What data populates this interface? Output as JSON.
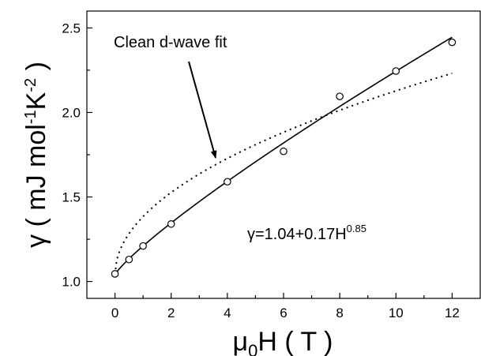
{
  "chart_data": {
    "type": "scatter",
    "title": "",
    "xlabel": {
      "main": "μ",
      "sub": "0",
      "rest": "H ( T )"
    },
    "ylabel": {
      "p1": "γ ( mJ mol",
      "sup1": "-1",
      "p2": "K",
      "sup2": "-2",
      "p3": " )"
    },
    "xlim": [
      -1,
      13
    ],
    "ylim": [
      0.9,
      2.6
    ],
    "xticks": [
      0,
      2,
      4,
      6,
      8,
      10,
      12
    ],
    "yticks": [
      1.0,
      1.5,
      2.0,
      2.5
    ],
    "ytick_labels": [
      "1.0",
      "1.5",
      "2.0",
      "2.5"
    ],
    "grid": false,
    "points": {
      "x": [
        0,
        0.5,
        1,
        2,
        4,
        6,
        8,
        10,
        12
      ],
      "y": [
        1.045,
        1.13,
        1.21,
        1.34,
        1.59,
        1.77,
        2.095,
        2.245,
        2.415
      ]
    },
    "fit_line": {
      "a": 1.04,
      "b": 0.17,
      "n": 0.85,
      "x_range": [
        0,
        12
      ]
    },
    "dwave_line": {
      "a": 1.04,
      "b": 0.344,
      "n": 0.5,
      "x_range": [
        0,
        12
      ]
    },
    "annotations": {
      "arrow_label": "Clean d-wave fit",
      "equation": {
        "base": "γ=1.04+0.17H",
        "sup": "0.85"
      }
    }
  }
}
